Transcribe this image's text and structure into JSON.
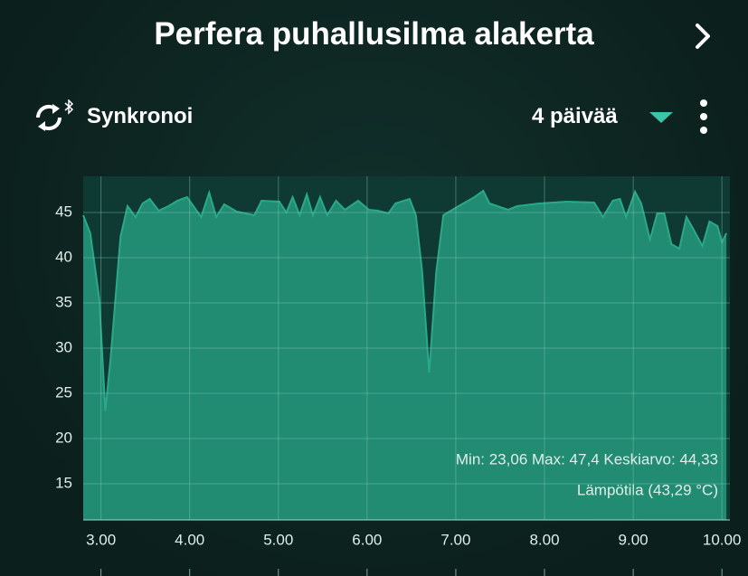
{
  "header": {
    "title": "Perfera puhallusilma alakerta"
  },
  "toolbar": {
    "sync_label": "Synkronoi",
    "range_label": "4 päivää"
  },
  "chart_data": {
    "type": "area",
    "annotation": "Min: 23,06 Max: 47,4 Keskiarvo: 44,33",
    "xlim": [
      2.8,
      10.09
    ],
    "ylim": [
      11,
      49
    ],
    "xticks": [
      {
        "value": 3,
        "label": "3.00"
      },
      {
        "value": 4,
        "label": "4.00"
      },
      {
        "value": 5,
        "label": "5.00"
      },
      {
        "value": 6,
        "label": "6.00"
      },
      {
        "value": 7,
        "label": "7.00"
      },
      {
        "value": 8,
        "label": "8.00"
      },
      {
        "value": 9,
        "label": "9.00"
      },
      {
        "value": 10,
        "label": "10.00"
      }
    ],
    "yticks": [
      15,
      20,
      25,
      30,
      35,
      40,
      45
    ],
    "grid": true,
    "series": [
      {
        "name": "Lämpötila (43,29 °C)",
        "color": "#2aa88a",
        "x": [
          2.8,
          2.88,
          2.98,
          3.05,
          3.11,
          3.22,
          3.3,
          3.39,
          3.47,
          3.55,
          3.65,
          3.76,
          3.86,
          3.97,
          4.13,
          4.22,
          4.3,
          4.39,
          4.53,
          4.73,
          4.81,
          5.01,
          5.09,
          5.16,
          5.24,
          5.32,
          5.39,
          5.47,
          5.55,
          5.65,
          5.75,
          5.9,
          6.02,
          6.12,
          6.24,
          6.32,
          6.48,
          6.55,
          6.62,
          6.7,
          6.78,
          6.86,
          7.03,
          7.21,
          7.31,
          7.38,
          7.59,
          7.69,
          7.94,
          8.25,
          8.56,
          8.66,
          8.77,
          8.85,
          8.92,
          9.02,
          9.09,
          9.19,
          9.27,
          9.35,
          9.43,
          9.52,
          9.6,
          9.67,
          9.78,
          9.86,
          9.95,
          10,
          10.05
        ],
        "values": [
          44.7,
          42.7,
          35.5,
          23.06,
          29,
          42.3,
          45.7,
          44.5,
          46,
          46.5,
          45.2,
          45.7,
          46.3,
          46.7,
          44.5,
          47.2,
          44.5,
          45.9,
          45.1,
          44.7,
          46.3,
          46.2,
          45,
          46.7,
          44.7,
          47,
          44.7,
          46.7,
          44.7,
          46.3,
          45.3,
          46.3,
          45.3,
          45.2,
          44.9,
          46,
          46.5,
          44.7,
          38.5,
          27.3,
          38.5,
          44.7,
          45.7,
          46.7,
          47.4,
          46,
          45.3,
          45.7,
          46,
          46.2,
          46.1,
          44.5,
          46.3,
          46.5,
          44.5,
          47.3,
          46,
          42,
          44.9,
          44.9,
          41.5,
          41,
          44.5,
          43.3,
          41.3,
          44,
          43.5,
          41.7,
          42.7
        ]
      }
    ]
  }
}
